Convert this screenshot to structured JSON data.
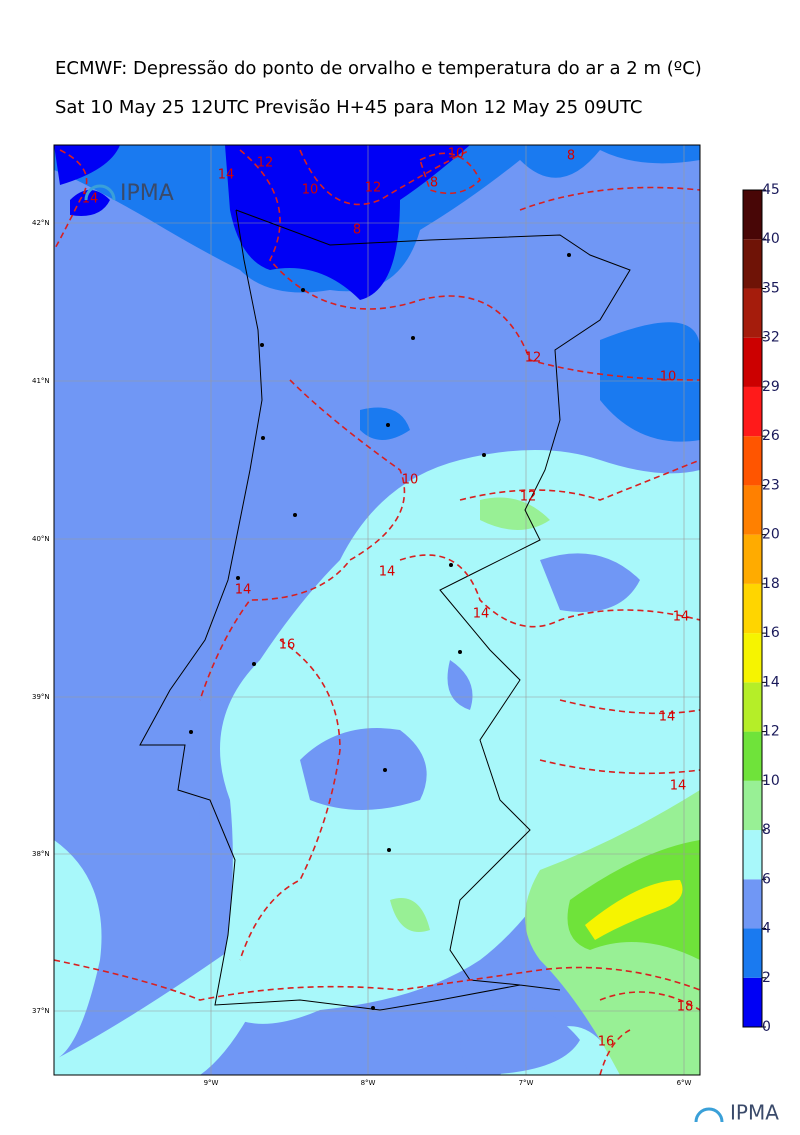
{
  "header": {
    "title": "ECMWF: Depressão do ponto de orvalho e temperatura do ar a 2 m (ºC)",
    "subtitle": "Sat 10 May 25 12UTC Previsão H+45 para Mon 12 May 25 09UTC"
  },
  "logo": "IPMA",
  "map": {
    "lat_labels": [
      "42°N",
      "41°N",
      "40°N",
      "39°N",
      "38°N",
      "37°N"
    ],
    "lon_labels": [
      "9°W",
      "8°W",
      "7°W",
      "6°W"
    ],
    "contour_labels": [
      14,
      12,
      10,
      12,
      10,
      8,
      8,
      8,
      14,
      12,
      10,
      10,
      12,
      14,
      14,
      14,
      14,
      16,
      14,
      14,
      18,
      16
    ]
  },
  "colorbar": {
    "ticks": [
      0,
      2,
      4,
      6,
      8,
      10,
      12,
      14,
      16,
      18,
      20,
      23,
      26,
      29,
      32,
      35,
      40,
      45
    ],
    "colors": [
      "#0000f5",
      "#1a7af0",
      "#7097f5",
      "#a8f8fa",
      "#98f095",
      "#6fe33a",
      "#b5ee28",
      "#f6f400",
      "#ffd500",
      "#ffab00",
      "#ff8000",
      "#ff5500",
      "#ff1a1a",
      "#cc0000",
      "#a51c0c",
      "#6f1306",
      "#480606"
    ]
  }
}
